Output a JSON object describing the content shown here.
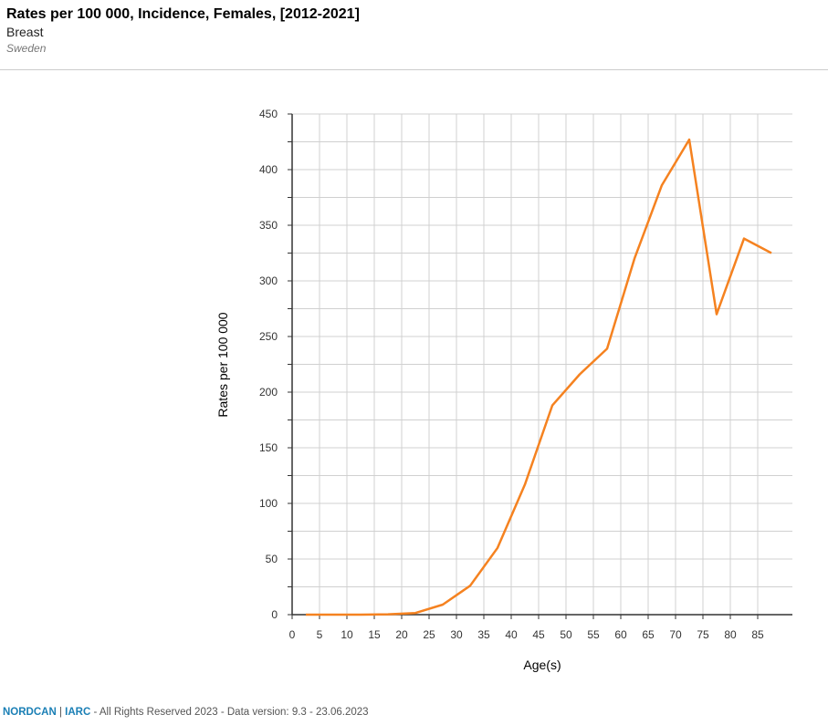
{
  "header": {
    "title": "Rates per 100 000, Incidence, Females, [2012-2021]",
    "subtitle": "Breast",
    "country": "Sweden"
  },
  "footer": {
    "brand1": "NORDCAN",
    "sep": " | ",
    "brand2": "IARC",
    "text": " - All Rights Reserved 2023 - Data version: 9.3 - 23.06.2023"
  },
  "chart_data": {
    "type": "line",
    "xlabel": "Age(s)",
    "ylabel": "Rates per 100 000",
    "xlim": [
      0,
      91
    ],
    "ylim": [
      0,
      450
    ],
    "xticks": [
      0,
      5,
      10,
      15,
      20,
      25,
      30,
      35,
      40,
      45,
      50,
      55,
      60,
      65,
      70,
      75,
      80,
      85
    ],
    "yticks": [
      0,
      50,
      100,
      150,
      200,
      250,
      300,
      350,
      400,
      450
    ],
    "grid": true,
    "color": "#f58220",
    "series": [
      {
        "name": "Breast",
        "x": [
          2.5,
          7.5,
          12.5,
          17.5,
          22.5,
          27.5,
          32.5,
          37.5,
          42.5,
          47.5,
          52.5,
          57.5,
          62.5,
          67.5,
          72.5,
          77.5,
          82.5,
          87.5
        ],
        "values": [
          0,
          0,
          0,
          0.3,
          1.5,
          9,
          26,
          60,
          117,
          188,
          216,
          239,
          320,
          386,
          427,
          270,
          338,
          325
        ]
      }
    ]
  }
}
